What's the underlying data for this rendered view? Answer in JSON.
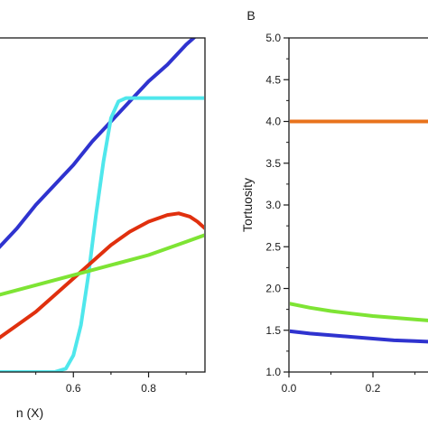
{
  "chart_data": [
    {
      "panel_label": "",
      "type": "line",
      "xlabel": "n (X)",
      "ylabel": "",
      "xlim": [
        0.4,
        0.95
      ],
      "ylim": [
        0,
        1
      ],
      "x_ticks": [
        0.6,
        0.8
      ],
      "x_tick_labels": [
        "0.6",
        "0.8"
      ],
      "y_ticks": [],
      "grid": false,
      "series": [
        {
          "color": "#2f33cf",
          "points": [
            [
              0.4,
              0.37
            ],
            [
              0.45,
              0.43
            ],
            [
              0.5,
              0.5
            ],
            [
              0.55,
              0.56
            ],
            [
              0.6,
              0.62
            ],
            [
              0.65,
              0.69
            ],
            [
              0.7,
              0.75
            ],
            [
              0.75,
              0.81
            ],
            [
              0.8,
              0.87
            ],
            [
              0.85,
              0.92
            ],
            [
              0.9,
              0.98
            ],
            [
              0.95,
              1.03
            ]
          ]
        },
        {
          "color": "#4fe7ec",
          "points": [
            [
              0.4,
              0.0
            ],
            [
              0.55,
              0.0
            ],
            [
              0.58,
              0.01
            ],
            [
              0.6,
              0.05
            ],
            [
              0.62,
              0.14
            ],
            [
              0.64,
              0.29
            ],
            [
              0.66,
              0.47
            ],
            [
              0.68,
              0.63
            ],
            [
              0.7,
              0.76
            ],
            [
              0.72,
              0.81
            ],
            [
              0.74,
              0.82
            ],
            [
              0.8,
              0.82
            ],
            [
              0.95,
              0.82
            ]
          ]
        },
        {
          "color": "#e0300e",
          "points": [
            [
              0.4,
              0.1
            ],
            [
              0.45,
              0.14
            ],
            [
              0.5,
              0.18
            ],
            [
              0.55,
              0.23
            ],
            [
              0.6,
              0.28
            ],
            [
              0.65,
              0.33
            ],
            [
              0.7,
              0.38
            ],
            [
              0.75,
              0.42
            ],
            [
              0.8,
              0.45
            ],
            [
              0.85,
              0.47
            ],
            [
              0.88,
              0.475
            ],
            [
              0.91,
              0.465
            ],
            [
              0.93,
              0.45
            ],
            [
              0.95,
              0.43
            ]
          ]
        },
        {
          "color": "#7ee434",
          "points": [
            [
              0.4,
              0.23
            ],
            [
              0.5,
              0.26
            ],
            [
              0.6,
              0.29
            ],
            [
              0.7,
              0.32
            ],
            [
              0.8,
              0.35
            ],
            [
              0.9,
              0.39
            ],
            [
              0.95,
              0.41
            ]
          ]
        }
      ]
    },
    {
      "panel_label": "B",
      "type": "line",
      "xlabel": "",
      "ylabel": "Tortuosity",
      "xlim": [
        0.0,
        0.43
      ],
      "ylim": [
        1.0,
        5.0
      ],
      "x_ticks": [
        0.0,
        0.2
      ],
      "x_tick_labels": [
        "0.0",
        "0.2"
      ],
      "y_ticks": [
        1.0,
        1.5,
        2.0,
        2.5,
        3.0,
        3.5,
        4.0,
        4.5,
        5.0
      ],
      "y_tick_labels": [
        "1.0",
        "1.5",
        "2.0",
        "2.5",
        "3.0",
        "3.5",
        "4.0",
        "4.5",
        "5.0"
      ],
      "grid": false,
      "series": [
        {
          "color": "#e8731c",
          "points": [
            [
              0.0,
              4.0
            ],
            [
              0.43,
              4.0
            ]
          ]
        },
        {
          "color": "#7ee434",
          "points": [
            [
              0.0,
              1.82
            ],
            [
              0.05,
              1.77
            ],
            [
              0.1,
              1.73
            ],
            [
              0.15,
              1.7
            ],
            [
              0.2,
              1.67
            ],
            [
              0.25,
              1.65
            ],
            [
              0.3,
              1.63
            ],
            [
              0.35,
              1.61
            ],
            [
              0.4,
              1.59
            ],
            [
              0.43,
              1.58
            ]
          ]
        },
        {
          "color": "#2f33cf",
          "points": [
            [
              0.0,
              1.49
            ],
            [
              0.05,
              1.46
            ],
            [
              0.1,
              1.44
            ],
            [
              0.15,
              1.42
            ],
            [
              0.2,
              1.4
            ],
            [
              0.25,
              1.38
            ],
            [
              0.3,
              1.37
            ],
            [
              0.35,
              1.36
            ],
            [
              0.4,
              1.35
            ],
            [
              0.43,
              1.34
            ]
          ]
        }
      ]
    }
  ]
}
